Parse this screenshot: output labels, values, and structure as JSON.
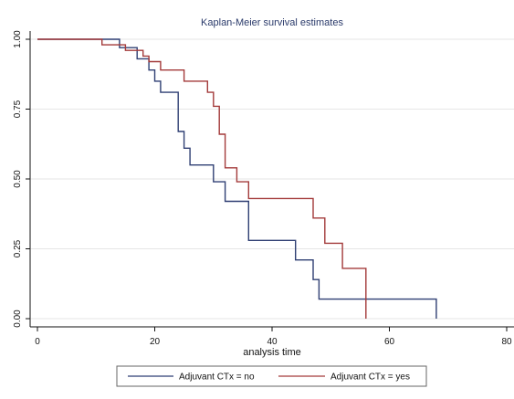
{
  "chart_data": {
    "type": "line",
    "title": "Kaplan-Meier survival estimates",
    "xlabel": "analysis time",
    "ylabel": "",
    "xlim": [
      0,
      80
    ],
    "ylim": [
      0,
      1
    ],
    "x_ticks": [
      0,
      20,
      40,
      60,
      80
    ],
    "y_ticks": [
      0.0,
      0.25,
      0.5,
      0.75,
      1.0
    ],
    "x_tick_labels": [
      "0",
      "20",
      "40",
      "60",
      "80"
    ],
    "y_tick_labels": [
      "0.00",
      "0.25",
      "0.50",
      "0.75",
      "1.00"
    ],
    "grid": true,
    "legend_position": "bottom",
    "step": true,
    "series": [
      {
        "name": "Adjuvant CTx = no",
        "color": "#2f3f73",
        "points": [
          [
            0,
            1.0
          ],
          [
            14,
            1.0
          ],
          [
            14,
            0.97
          ],
          [
            17,
            0.97
          ],
          [
            17,
            0.93
          ],
          [
            19,
            0.93
          ],
          [
            19,
            0.89
          ],
          [
            20,
            0.89
          ],
          [
            20,
            0.85
          ],
          [
            21,
            0.85
          ],
          [
            21,
            0.81
          ],
          [
            24,
            0.81
          ],
          [
            24,
            0.67
          ],
          [
            25,
            0.67
          ],
          [
            25,
            0.61
          ],
          [
            26,
            0.61
          ],
          [
            26,
            0.55
          ],
          [
            30,
            0.55
          ],
          [
            30,
            0.49
          ],
          [
            32,
            0.49
          ],
          [
            32,
            0.42
          ],
          [
            36,
            0.42
          ],
          [
            36,
            0.28
          ],
          [
            44,
            0.28
          ],
          [
            44,
            0.21
          ],
          [
            47,
            0.21
          ],
          [
            47,
            0.14
          ],
          [
            48,
            0.14
          ],
          [
            48,
            0.07
          ],
          [
            68,
            0.07
          ],
          [
            68,
            0.0
          ]
        ]
      },
      {
        "name": "Adjuvant CTx  = yes",
        "color": "#a33a3a",
        "points": [
          [
            0,
            1.0
          ],
          [
            11,
            1.0
          ],
          [
            11,
            0.98
          ],
          [
            15,
            0.98
          ],
          [
            15,
            0.96
          ],
          [
            18,
            0.96
          ],
          [
            18,
            0.94
          ],
          [
            19,
            0.94
          ],
          [
            19,
            0.92
          ],
          [
            21,
            0.92
          ],
          [
            21,
            0.89
          ],
          [
            25,
            0.89
          ],
          [
            25,
            0.85
          ],
          [
            29,
            0.85
          ],
          [
            29,
            0.81
          ],
          [
            30,
            0.81
          ],
          [
            30,
            0.76
          ],
          [
            31,
            0.76
          ],
          [
            31,
            0.66
          ],
          [
            32,
            0.66
          ],
          [
            32,
            0.54
          ],
          [
            34,
            0.54
          ],
          [
            34,
            0.49
          ],
          [
            36,
            0.49
          ],
          [
            36,
            0.43
          ],
          [
            47,
            0.43
          ],
          [
            47,
            0.36
          ],
          [
            49,
            0.36
          ],
          [
            49,
            0.27
          ],
          [
            52,
            0.27
          ],
          [
            52,
            0.18
          ],
          [
            56,
            0.18
          ],
          [
            56,
            0.0
          ]
        ]
      }
    ]
  }
}
